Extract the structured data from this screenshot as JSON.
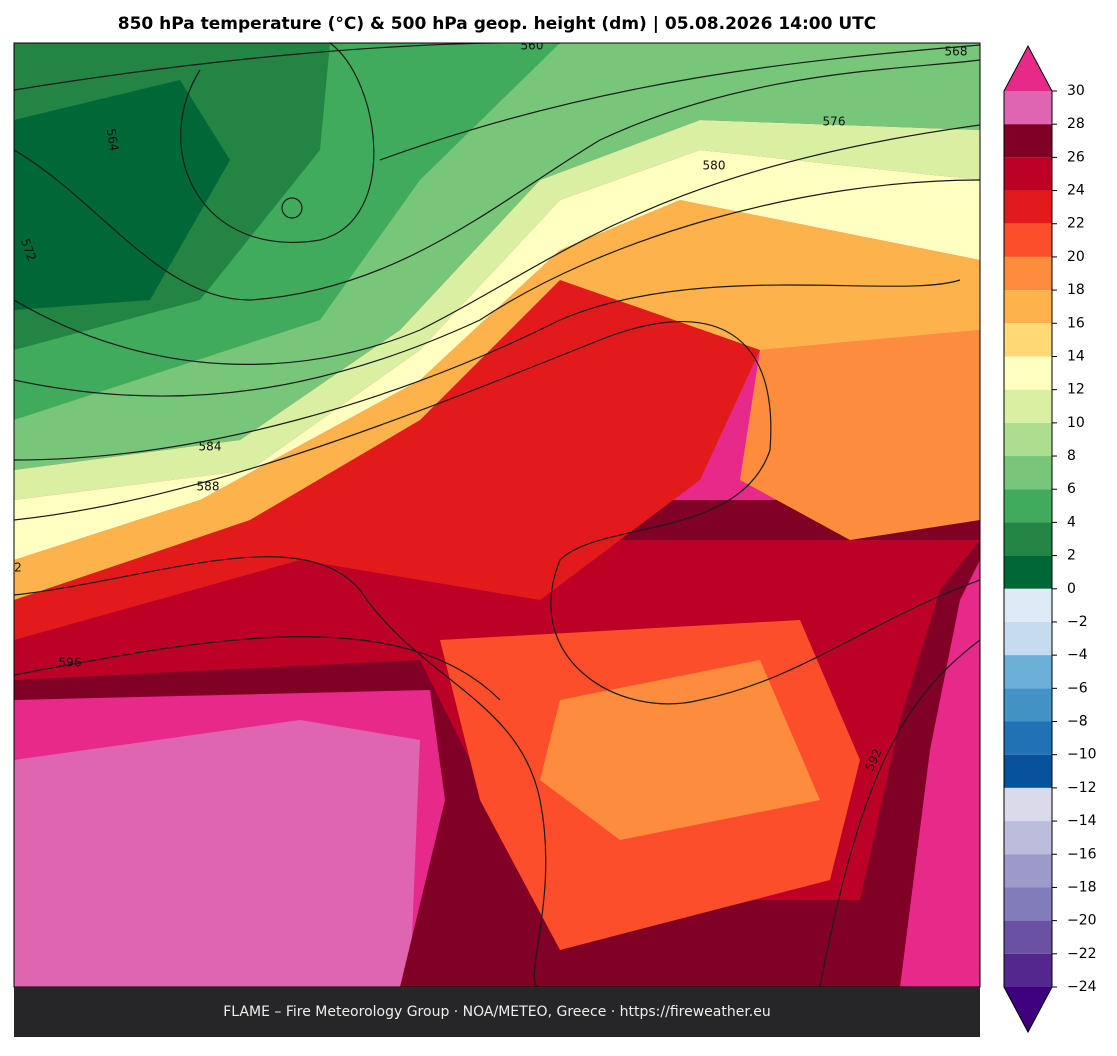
{
  "header": {
    "title": "850 hPa temperature (°C) & 500 hPa geop. height (dm)  |  05.08.2026 14:00 UTC"
  },
  "map": {
    "contour_labels": [
      560,
      568,
      576,
      580,
      564,
      572,
      584,
      588,
      596,
      592,
      2
    ]
  },
  "colorbar": {
    "lim": [
      -24,
      30
    ],
    "ticks": [
      30,
      28,
      26,
      24,
      22,
      20,
      18,
      16,
      14,
      12,
      10,
      8,
      6,
      4,
      2,
      0,
      {
        "value": -2,
        "label": "−2"
      },
      {
        "value": -4,
        "label": "−4"
      },
      {
        "value": -6,
        "label": "−6"
      },
      {
        "value": -8,
        "label": "−8"
      },
      {
        "value": -10,
        "label": "−10"
      },
      {
        "value": -12,
        "label": "−12"
      },
      {
        "value": -14,
        "label": "−14"
      },
      {
        "value": -16,
        "label": "−16"
      },
      {
        "value": -18,
        "label": "−18"
      },
      {
        "value": -20,
        "label": "−20"
      },
      {
        "value": -22,
        "label": "−22"
      },
      {
        "value": -24,
        "label": "−24"
      }
    ],
    "colors": [
      "#df65b0",
      "#800026",
      "#bd0026",
      "#e31a1c",
      "#fc4e2a",
      "#fd8d3c",
      "#feb24c",
      "#fed976",
      "#ffffbf",
      "#d9f0a3",
      "#addd8e",
      "#78c679",
      "#41ab5d",
      "#238443",
      "#006837",
      "#deebf7",
      "#c6dbef",
      "#6baed6",
      "#4292c6",
      "#2171b5",
      "#08519c",
      "#dadaeb",
      "#bcbddc",
      "#9e9ac8",
      "#807dba",
      "#6a51a3",
      "#54278f"
    ],
    "over_color": "#e7298a",
    "under_color": "#3f007d"
  },
  "footer": {
    "text": "FLAME – Fire Meteorology Group · NOA/METEO, Greece · https://fireweather.eu"
  }
}
